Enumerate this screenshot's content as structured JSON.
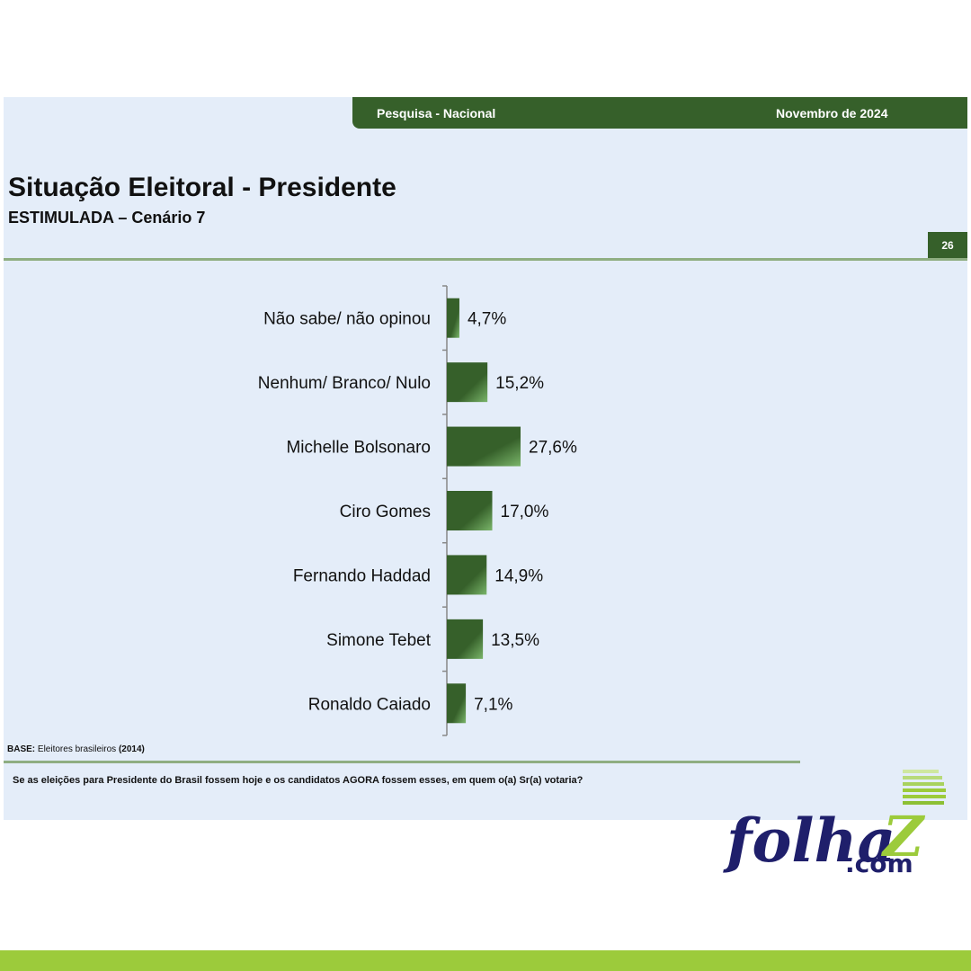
{
  "header": {
    "left_label": "Pesquisa - Nacional",
    "right_label": "Novembro de 2024",
    "page_number": "26"
  },
  "title": "Situação Eleitoral - Presidente",
  "subtitle": "ESTIMULADA – Cenário 7",
  "footer": {
    "base_label": "BASE:",
    "base_text": "Eleitores brasileiros",
    "base_count": "(2014)",
    "question": "Se as eleições para Presidente do Brasil fossem hoje e os candidatos AGORA fossem esses, em quem o(a) Sr(a) votaria?"
  },
  "logo": {
    "text_main": "folha",
    "text_z": "Z",
    "text_dom": ".com"
  },
  "colors": {
    "bar": "#36602a",
    "bar_light": "#7ab56a",
    "accent": "#9ccb3b",
    "logo_navy": "#1f1f6b"
  },
  "chart_data": {
    "type": "bar",
    "orientation": "horizontal",
    "categories": [
      "Não sabe/ não opinou",
      "Nenhum/ Branco/ Nulo",
      "Michelle Bolsonaro",
      "Ciro Gomes",
      "Fernando Haddad",
      "Simone Tebet",
      "Ronaldo Caiado"
    ],
    "values": [
      4.7,
      15.2,
      27.6,
      17.0,
      14.9,
      13.5,
      7.1
    ],
    "value_labels": [
      "4,7%",
      "15,2%",
      "27,6%",
      "17,0%",
      "14,9%",
      "13,5%",
      "7,1%"
    ],
    "xlim": [
      0,
      100
    ],
    "grid": false,
    "legend": "none"
  }
}
